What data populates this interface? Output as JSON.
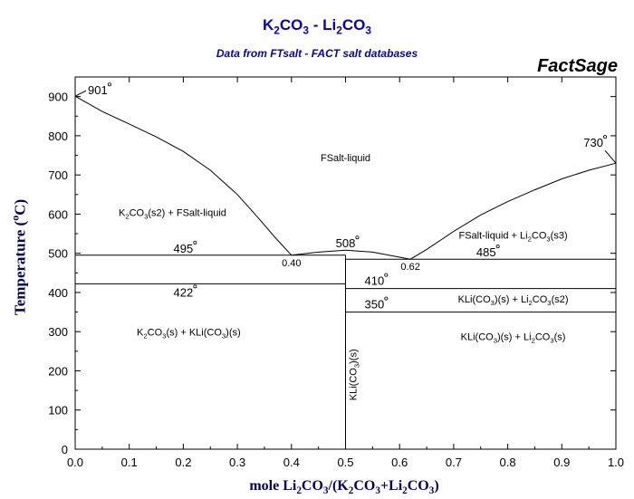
{
  "title_parts": [
    "K",
    "2",
    "CO",
    "3",
    " - Li",
    "2",
    "CO",
    "3"
  ],
  "subtitle": "Data from FTsalt - FACT salt databases",
  "brand": "FactSage",
  "ylabel_parts": [
    "Temperature (",
    "o",
    "C)"
  ],
  "xlabel_parts": [
    "mole Li",
    "2",
    "CO",
    "3",
    "/(K",
    "2",
    "CO",
    "3",
    "+Li",
    "2",
    "CO",
    "3",
    ")"
  ],
  "chart_data": {
    "type": "line",
    "subtype": "phase diagram",
    "xlim": [
      0.0,
      1.0
    ],
    "ylim": [
      0,
      950
    ],
    "x_ticks": [
      "0.0",
      "0.1",
      "0.2",
      "0.3",
      "0.4",
      "0.5",
      "0.6",
      "0.7",
      "0.8",
      "0.9",
      "1.0"
    ],
    "y_ticks": [
      "0",
      "100",
      "200",
      "300",
      "400",
      "500",
      "600",
      "700",
      "800",
      "900"
    ],
    "grid": false,
    "legend": "none",
    "series": [
      {
        "points": [
          [
            0.0,
            901
          ],
          [
            0.05,
            862
          ],
          [
            0.1,
            830
          ],
          [
            0.15,
            797
          ],
          [
            0.2,
            760
          ],
          [
            0.25,
            712
          ],
          [
            0.3,
            650
          ],
          [
            0.34,
            588
          ],
          [
            0.37,
            540
          ],
          [
            0.4,
            495
          ]
        ]
      },
      {
        "points": [
          [
            0.4,
            495
          ],
          [
            0.45,
            503
          ],
          [
            0.5,
            508
          ],
          [
            0.55,
            503
          ],
          [
            0.6,
            490
          ],
          [
            0.62,
            485
          ]
        ]
      },
      {
        "points": [
          [
            0.62,
            485
          ],
          [
            0.65,
            510
          ],
          [
            0.7,
            556
          ],
          [
            0.75,
            598
          ],
          [
            0.8,
            632
          ],
          [
            0.85,
            662
          ],
          [
            0.9,
            690
          ],
          [
            0.95,
            712
          ],
          [
            1.0,
            730
          ]
        ]
      },
      {
        "points": [
          [
            0.0,
            495
          ],
          [
            0.5,
            495
          ]
        ]
      },
      {
        "points": [
          [
            0.0,
            422
          ],
          [
            0.5,
            422
          ]
        ]
      },
      {
        "points": [
          [
            0.5,
            485
          ],
          [
            1.0,
            485
          ]
        ]
      },
      {
        "points": [
          [
            0.5,
            410
          ],
          [
            1.0,
            410
          ]
        ]
      },
      {
        "points": [
          [
            0.5,
            350
          ],
          [
            1.0,
            350
          ]
        ]
      },
      {
        "points": [
          [
            0.5,
            0
          ],
          [
            0.5,
            495
          ]
        ]
      }
    ],
    "invariant_points": [
      {
        "label": "901",
        "x": 0.0,
        "y": 901
      },
      {
        "label": "730",
        "x": 1.0,
        "y": 730
      },
      {
        "label": "495",
        "x": 0.2,
        "y": 495
      },
      {
        "label": "422",
        "x": 0.2,
        "y": 422
      },
      {
        "label": "508",
        "x": 0.5,
        "y": 508
      },
      {
        "label": "485",
        "x": 0.76,
        "y": 485
      },
      {
        "label": "410",
        "x": 0.55,
        "y": 410
      },
      {
        "label": "350",
        "x": 0.55,
        "y": 350
      },
      {
        "label": "0.40",
        "x": 0.4,
        "y": 495
      },
      {
        "label": "0.62",
        "x": 0.62,
        "y": 485
      }
    ],
    "region_labels": [
      {
        "parts": [
          "FSalt-liquid"
        ],
        "x": 0.5,
        "y": 735
      },
      {
        "parts": [
          "K",
          "2",
          "CO",
          "3",
          "(s2) + FSalt-liquid"
        ],
        "x": 0.18,
        "y": 595
      },
      {
        "parts": [
          "FSalt-liquid + Li",
          "2",
          "CO",
          "3",
          "(s3)"
        ],
        "x": 0.81,
        "y": 537
      },
      {
        "parts": [
          "KLi(CO",
          "3",
          ")(s) + Li",
          "2",
          "CO",
          "3",
          "(s2)"
        ],
        "x": 0.81,
        "y": 375
      },
      {
        "parts": [
          "KLi(CO",
          "3",
          ")(s) + Li",
          "2",
          "CO",
          "3",
          "(s)"
        ],
        "x": 0.81,
        "y": 278
      },
      {
        "parts": [
          "K",
          "2",
          "CO",
          "3",
          "(s) + KLi(CO",
          "3",
          ")(s)"
        ],
        "x": 0.21,
        "y": 290
      },
      {
        "parts": [
          "KLi(CO",
          "3",
          ")(s)"
        ],
        "x": 0.52,
        "y": 190,
        "vertical": true
      }
    ]
  }
}
